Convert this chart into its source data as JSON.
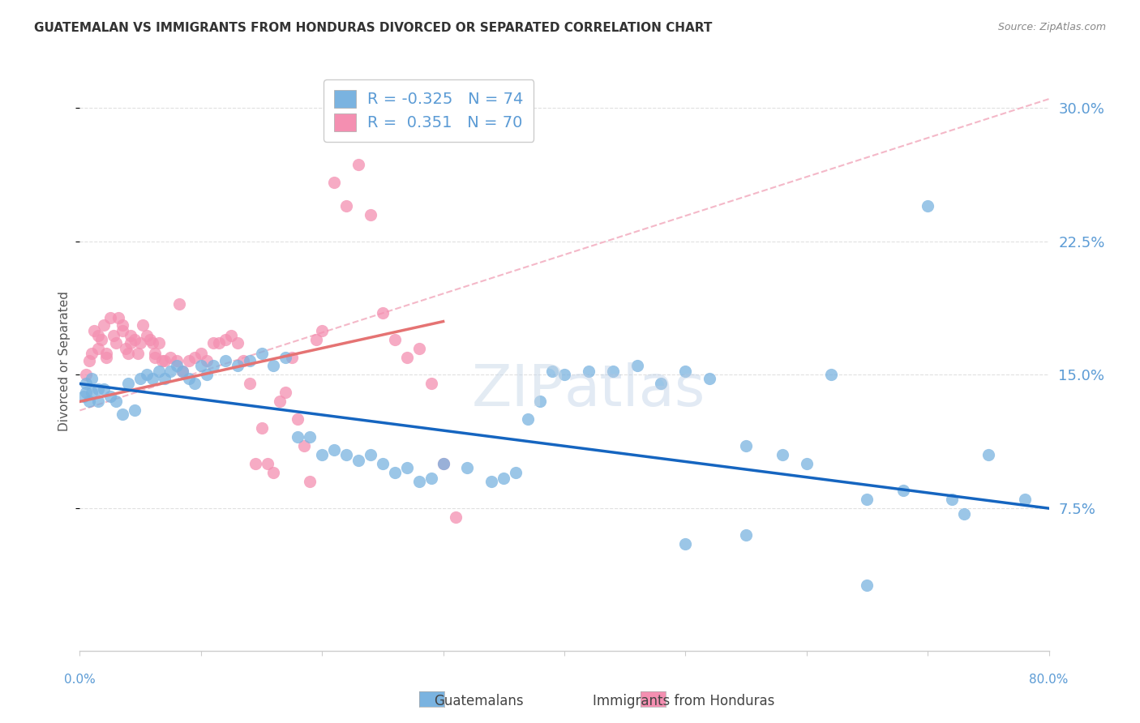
{
  "title": "GUATEMALAN VS IMMIGRANTS FROM HONDURAS DIVORCED OR SEPARATED CORRELATION CHART",
  "source": "Source: ZipAtlas.com",
  "ylabel": "Divorced or Separated",
  "ytick_labels": [
    "7.5%",
    "15.0%",
    "22.5%",
    "30.0%"
  ],
  "ytick_values": [
    7.5,
    15.0,
    22.5,
    30.0
  ],
  "xlim": [
    0.0,
    80.0
  ],
  "ylim": [
    -0.5,
    32.0
  ],
  "scatter_blue_color": "#7ab3e0",
  "scatter_pink_color": "#f48fb1",
  "line_blue_color": "#1565c0",
  "line_pink_color": "#e57373",
  "dashed_line_color": "#f4b8c8",
  "background_color": "#ffffff",
  "grid_color": "#dddddd",
  "title_fontsize": 11,
  "axis_label_color_right": "#5b9bd5",
  "blue_line": {
    "x0": 0.0,
    "y0": 14.5,
    "x1": 80.0,
    "y1": 7.5
  },
  "pink_line": {
    "x0": 0.0,
    "y0": 13.5,
    "x1": 30.0,
    "y1": 18.0
  },
  "dashed_line": {
    "x0": 0.0,
    "y0": 13.0,
    "x1": 80.0,
    "y1": 30.5
  },
  "guatemalan_scatter": [
    [
      1.0,
      14.0
    ],
    [
      1.5,
      13.5
    ],
    [
      2.0,
      14.2
    ],
    [
      2.5,
      13.8
    ],
    [
      3.0,
      13.5
    ],
    [
      3.5,
      12.8
    ],
    [
      4.0,
      14.5
    ],
    [
      4.5,
      13.0
    ],
    [
      5.0,
      14.8
    ],
    [
      5.5,
      15.0
    ],
    [
      6.0,
      14.8
    ],
    [
      6.5,
      15.2
    ],
    [
      7.0,
      14.8
    ],
    [
      7.5,
      15.2
    ],
    [
      8.0,
      15.5
    ],
    [
      8.5,
      15.2
    ],
    [
      9.0,
      14.8
    ],
    [
      9.5,
      14.5
    ],
    [
      10.0,
      15.5
    ],
    [
      10.5,
      15.0
    ],
    [
      11.0,
      15.5
    ],
    [
      12.0,
      15.8
    ],
    [
      13.0,
      15.5
    ],
    [
      14.0,
      15.8
    ],
    [
      15.0,
      16.2
    ],
    [
      16.0,
      15.5
    ],
    [
      17.0,
      16.0
    ],
    [
      18.0,
      11.5
    ],
    [
      19.0,
      11.5
    ],
    [
      20.0,
      10.5
    ],
    [
      21.0,
      10.8
    ],
    [
      22.0,
      10.5
    ],
    [
      23.0,
      10.2
    ],
    [
      24.0,
      10.5
    ],
    [
      25.0,
      10.0
    ],
    [
      26.0,
      9.5
    ],
    [
      27.0,
      9.8
    ],
    [
      28.0,
      9.0
    ],
    [
      29.0,
      9.2
    ],
    [
      30.0,
      10.0
    ],
    [
      32.0,
      9.8
    ],
    [
      34.0,
      9.0
    ],
    [
      35.0,
      9.2
    ],
    [
      36.0,
      9.5
    ],
    [
      37.0,
      12.5
    ],
    [
      38.0,
      13.5
    ],
    [
      39.0,
      15.2
    ],
    [
      40.0,
      15.0
    ],
    [
      42.0,
      15.2
    ],
    [
      44.0,
      15.2
    ],
    [
      46.0,
      15.5
    ],
    [
      48.0,
      14.5
    ],
    [
      50.0,
      15.2
    ],
    [
      52.0,
      14.8
    ],
    [
      55.0,
      11.0
    ],
    [
      58.0,
      10.5
    ],
    [
      60.0,
      10.0
    ],
    [
      62.0,
      15.0
    ],
    [
      65.0,
      8.0
    ],
    [
      68.0,
      8.5
    ],
    [
      70.0,
      24.5
    ],
    [
      72.0,
      8.0
    ],
    [
      73.0,
      7.2
    ],
    [
      75.0,
      10.5
    ],
    [
      78.0,
      8.0
    ],
    [
      0.5,
      14.5
    ],
    [
      1.0,
      14.8
    ],
    [
      1.5,
      14.2
    ],
    [
      50.0,
      5.5
    ],
    [
      55.0,
      6.0
    ],
    [
      65.0,
      3.2
    ],
    [
      0.3,
      13.8
    ],
    [
      0.5,
      14.0
    ],
    [
      0.8,
      13.5
    ]
  ],
  "honduras_scatter": [
    [
      0.5,
      15.0
    ],
    [
      0.8,
      15.8
    ],
    [
      1.0,
      16.2
    ],
    [
      1.2,
      17.5
    ],
    [
      1.5,
      17.2
    ],
    [
      1.8,
      17.0
    ],
    [
      2.0,
      17.8
    ],
    [
      2.2,
      16.2
    ],
    [
      2.5,
      18.2
    ],
    [
      2.8,
      17.2
    ],
    [
      3.0,
      16.8
    ],
    [
      3.2,
      18.2
    ],
    [
      3.5,
      17.8
    ],
    [
      3.8,
      16.5
    ],
    [
      4.0,
      16.2
    ],
    [
      4.2,
      17.2
    ],
    [
      4.5,
      17.0
    ],
    [
      4.8,
      16.2
    ],
    [
      5.0,
      16.8
    ],
    [
      5.2,
      17.8
    ],
    [
      5.5,
      17.2
    ],
    [
      5.8,
      17.0
    ],
    [
      6.0,
      16.8
    ],
    [
      6.2,
      16.2
    ],
    [
      6.5,
      16.8
    ],
    [
      6.8,
      15.8
    ],
    [
      7.0,
      15.8
    ],
    [
      7.5,
      16.0
    ],
    [
      8.0,
      15.8
    ],
    [
      8.5,
      15.2
    ],
    [
      9.0,
      15.8
    ],
    [
      9.5,
      16.0
    ],
    [
      10.0,
      16.2
    ],
    [
      10.5,
      15.8
    ],
    [
      11.0,
      16.8
    ],
    [
      11.5,
      16.8
    ],
    [
      12.0,
      17.0
    ],
    [
      12.5,
      17.2
    ],
    [
      13.0,
      16.8
    ],
    [
      13.5,
      15.8
    ],
    [
      14.0,
      14.5
    ],
    [
      14.5,
      10.0
    ],
    [
      15.0,
      12.0
    ],
    [
      15.5,
      10.0
    ],
    [
      16.0,
      9.5
    ],
    [
      16.5,
      13.5
    ],
    [
      17.0,
      14.0
    ],
    [
      17.5,
      16.0
    ],
    [
      18.0,
      12.5
    ],
    [
      18.5,
      11.0
    ],
    [
      19.0,
      9.0
    ],
    [
      19.5,
      17.0
    ],
    [
      20.0,
      17.5
    ],
    [
      21.0,
      25.8
    ],
    [
      22.0,
      24.5
    ],
    [
      23.0,
      26.8
    ],
    [
      24.0,
      24.0
    ],
    [
      25.0,
      18.5
    ],
    [
      26.0,
      17.0
    ],
    [
      27.0,
      16.0
    ],
    [
      28.0,
      16.5
    ],
    [
      29.0,
      14.5
    ],
    [
      30.0,
      10.0
    ],
    [
      31.0,
      7.0
    ],
    [
      4.2,
      16.8
    ],
    [
      6.2,
      16.0
    ],
    [
      8.2,
      19.0
    ],
    [
      1.5,
      16.5
    ],
    [
      2.2,
      16.0
    ],
    [
      3.5,
      17.5
    ]
  ]
}
